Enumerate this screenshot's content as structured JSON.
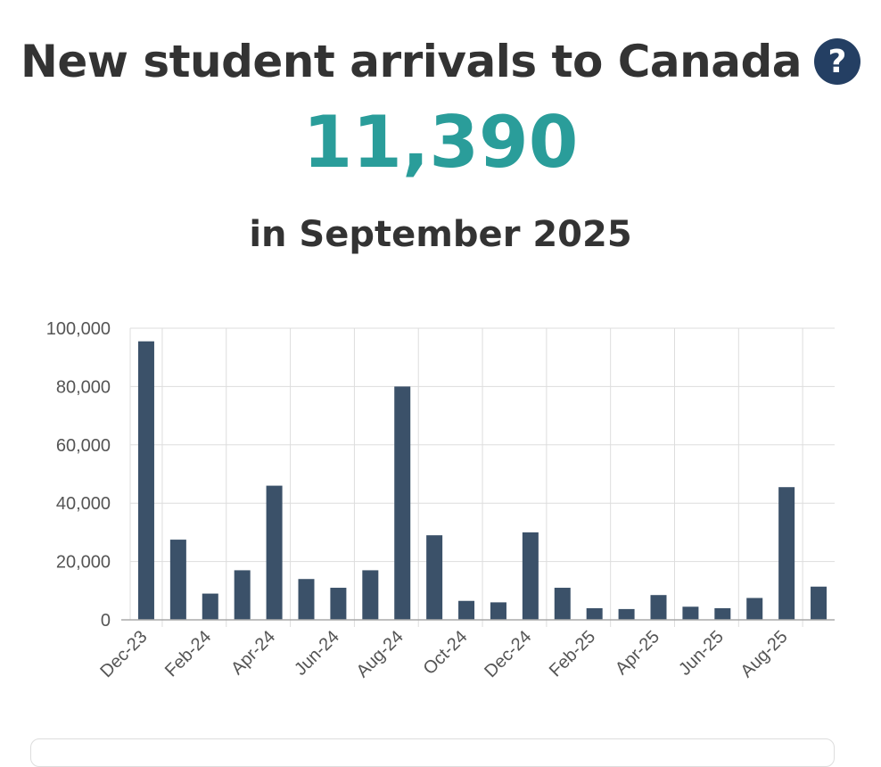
{
  "header": {
    "title": "New student arrivals to Canada",
    "help_icon": "question-circle-icon",
    "value": "11,390",
    "period": "in September 2025"
  },
  "colors": {
    "bar": "#3b5169",
    "value": "#2a9d9a",
    "icon": "#243f63",
    "grid": "#dddddd",
    "text": "#333333"
  },
  "chart_data": {
    "type": "bar",
    "categories": [
      "Dec-23",
      "Jan-24",
      "Feb-24",
      "Mar-24",
      "Apr-24",
      "May-24",
      "Jun-24",
      "Jul-24",
      "Aug-24",
      "Sep-24",
      "Oct-24",
      "Nov-24",
      "Dec-24",
      "Jan-25",
      "Feb-25",
      "Mar-25",
      "Apr-25",
      "May-25",
      "Jun-25",
      "Jul-25",
      "Aug-25",
      "Sep-25"
    ],
    "tick_labels": [
      "Dec-23",
      "Feb-24",
      "Apr-24",
      "Jun-24",
      "Aug-24",
      "Oct-24",
      "Dec-24",
      "Feb-25",
      "Apr-25",
      "Jun-25",
      "Aug-25"
    ],
    "values": [
      95500,
      27500,
      9000,
      17000,
      46000,
      14000,
      11000,
      17000,
      80000,
      29000,
      6500,
      6000,
      30000,
      11000,
      4000,
      3700,
      8500,
      4500,
      4000,
      7500,
      45500,
      11390
    ],
    "yticks": [
      "0",
      "20,000",
      "40,000",
      "60,000",
      "80,000",
      "100,000"
    ],
    "ylim": [
      0,
      100000
    ],
    "grid": true
  }
}
